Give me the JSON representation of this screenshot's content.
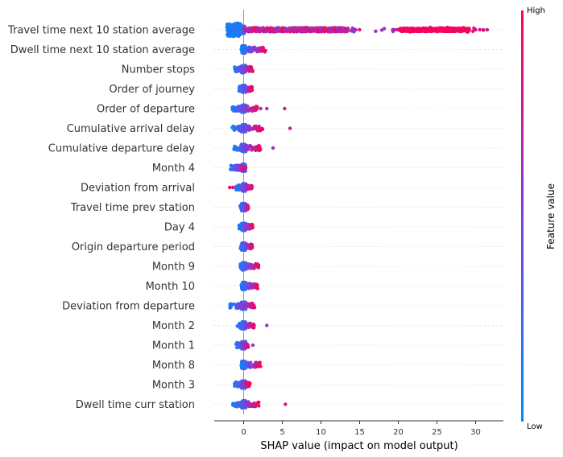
{
  "chart_data": {
    "type": "scatter",
    "subtype": "shap_beeswarm",
    "title": "",
    "xlabel": "SHAP value (impact on model output)",
    "ylabel": "",
    "xlim": [
      -3.8,
      33.5
    ],
    "xticks": [
      0,
      5,
      10,
      15,
      20,
      25,
      30
    ],
    "grid": false,
    "colorbar": {
      "title": "Feature value",
      "high_label": "High",
      "low_label": "Low",
      "low_color": "#008bfb",
      "high_color": "#ff0052"
    },
    "features": [
      {
        "name": "Travel time next 10 station average",
        "min": -2.2,
        "max": 31.8,
        "spread": 0.25,
        "outliers": [
          14.5,
          15.0,
          19.5,
          20.0,
          30.0,
          31.0,
          31.5
        ]
      },
      {
        "name": "Dwell time next 10 station average",
        "min": -0.3,
        "max": 2.9,
        "spread": 0.45,
        "outliers": []
      },
      {
        "name": "Number stops",
        "min": -1.2,
        "max": 1.2,
        "spread": 0.55,
        "outliers": []
      },
      {
        "name": "Order of journey",
        "min": -0.6,
        "max": 1.1,
        "spread": 0.55,
        "outliers": []
      },
      {
        "name": "Order of departure",
        "min": -1.5,
        "max": 1.8,
        "spread": 0.6,
        "outliers": [
          2.2,
          3.0,
          5.3
        ]
      },
      {
        "name": "Cumulative arrival delay",
        "min": -1.6,
        "max": 2.5,
        "spread": 0.6,
        "outliers": [
          6.0
        ]
      },
      {
        "name": "Cumulative departure delay",
        "min": -1.3,
        "max": 2.2,
        "spread": 0.6,
        "outliers": [
          3.8
        ]
      },
      {
        "name": "Month 4",
        "min": -1.7,
        "max": 0.3,
        "spread": 0.5,
        "outliers": []
      },
      {
        "name": "Deviation from arrival",
        "min": -1.0,
        "max": 1.1,
        "spread": 0.55,
        "outliers": [
          -1.8,
          -1.4
        ]
      },
      {
        "name": "Travel time prev station",
        "min": -0.5,
        "max": 0.6,
        "spread": 0.5,
        "outliers": []
      },
      {
        "name": "Day 4",
        "min": -0.6,
        "max": 1.2,
        "spread": 0.55,
        "outliers": []
      },
      {
        "name": "Origin departure period",
        "min": -0.5,
        "max": 1.2,
        "spread": 0.5,
        "outliers": []
      },
      {
        "name": "Month 9",
        "min": -0.5,
        "max": 2.0,
        "spread": 0.5,
        "outliers": []
      },
      {
        "name": "Month 10",
        "min": -0.3,
        "max": 1.8,
        "spread": 0.5,
        "outliers": []
      },
      {
        "name": "Deviation from departure",
        "min": -1.8,
        "max": 1.5,
        "spread": 0.6,
        "outliers": []
      },
      {
        "name": "Month 2",
        "min": -0.8,
        "max": 1.4,
        "spread": 0.5,
        "outliers": [
          3.0
        ]
      },
      {
        "name": "Month 1",
        "min": -1.0,
        "max": 0.6,
        "spread": 0.5,
        "outliers": [
          1.2
        ]
      },
      {
        "name": "Month 8",
        "min": -0.3,
        "max": 2.2,
        "spread": 0.5,
        "outliers": []
      },
      {
        "name": "Month 3",
        "min": -1.2,
        "max": 0.8,
        "spread": 0.5,
        "outliers": []
      },
      {
        "name": "Dwell time curr station",
        "min": -1.4,
        "max": 2.0,
        "spread": 0.55,
        "outliers": [
          5.4
        ]
      }
    ]
  }
}
